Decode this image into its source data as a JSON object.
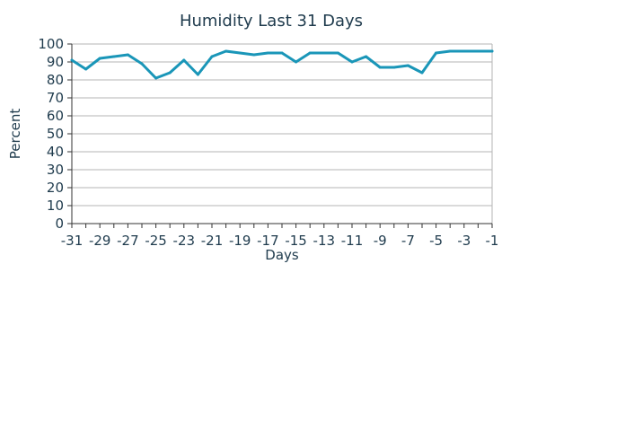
{
  "chart_data": {
    "type": "line",
    "title": "Humidity Last 31 Days",
    "xlabel": "Days",
    "ylabel": "Percent",
    "xlim": [
      -31,
      -1
    ],
    "ylim": [
      0,
      100
    ],
    "xticks": [
      -31,
      -29,
      -27,
      -25,
      -23,
      -21,
      -19,
      -17,
      -15,
      -13,
      -11,
      -9,
      -7,
      -5,
      -3,
      -1
    ],
    "yticks": [
      0,
      10,
      20,
      30,
      40,
      50,
      60,
      70,
      80,
      90,
      100
    ],
    "grid": true,
    "colors": {
      "line": "#1a96b8",
      "grid": "#b5b5b5",
      "axis": "#333333"
    },
    "series": [
      {
        "x": [
          -31,
          -30,
          -29,
          -28,
          -27,
          -26,
          -25,
          -24,
          -23,
          -22,
          -21,
          -20,
          -19,
          -18,
          -17,
          -16,
          -15,
          -14,
          -13,
          -12,
          -11,
          -10,
          -9,
          -8,
          -7,
          -6,
          -5,
          -4,
          -3,
          -2,
          -1
        ],
        "values": [
          91,
          86,
          92,
          93,
          94,
          89,
          81,
          84,
          91,
          83,
          93,
          96,
          95,
          94,
          95,
          95,
          90,
          95,
          95,
          95,
          90,
          93,
          87,
          87,
          88,
          84,
          95,
          96,
          96,
          96,
          96
        ]
      }
    ]
  }
}
